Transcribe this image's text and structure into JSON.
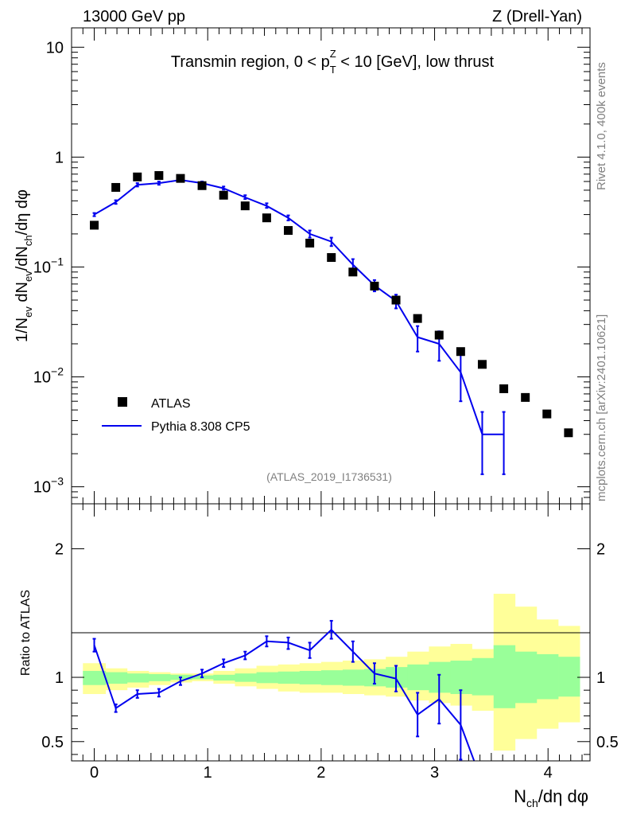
{
  "header": {
    "left": "13000 GeV pp",
    "right": "Z (Drell-Yan)"
  },
  "side_labels": {
    "rivet": "Rivet 4.1.0,  400k events",
    "site": "mcplots.cern.ch [arXiv:2401.10621]"
  },
  "colors": {
    "mc": "#0000ee",
    "band_yellow": "#ffff99",
    "band_green": "#99ff99",
    "data": "#000000"
  },
  "chart_data": [
    {
      "type": "scatter",
      "panel": "main",
      "title": "Transmin region, 0 < p_T^Z < 10 [GeV], low thrust",
      "title_parts": {
        "pre": "Transmin region, 0 < p",
        "sub": "T",
        "sup": "Z",
        "post": " < 10 [GeV], low thrust"
      },
      "ylabel": "1/N_ev dN_ev/dN_ch/dη dφ",
      "ylabel_parts": {
        "p1": "1/N",
        "s1": "ev",
        "p2": " dN",
        "s2": "ev",
        "p3": "/dN",
        "s3": "ch",
        "p4": "/dη dφ"
      },
      "yscale": "log",
      "ylim": [
        0.0007,
        15
      ],
      "xlim": [
        -0.2,
        4.37
      ],
      "yticks": [
        {
          "value": 10,
          "base": "10",
          "exp": ""
        },
        {
          "value": 1,
          "base": "1",
          "exp": ""
        },
        {
          "value": 0.1,
          "base": "10",
          "exp": "−1"
        },
        {
          "value": 0.01,
          "base": "10",
          "exp": "−2"
        },
        {
          "value": 0.001,
          "base": "10",
          "exp": "−3"
        }
      ],
      "watermark": "(ATLAS_2019_I1736531)",
      "legend": {
        "position": "bottom-left",
        "entries": [
          "ATLAS",
          "Pythia 8.308 CP5"
        ]
      },
      "series": [
        {
          "name": "ATLAS",
          "x": [
            0.0,
            0.19,
            0.38,
            0.57,
            0.76,
            0.95,
            1.14,
            1.33,
            1.52,
            1.71,
            1.9,
            2.09,
            2.28,
            2.47,
            2.66,
            2.85,
            3.04,
            3.23,
            3.42,
            3.61,
            3.8,
            3.99,
            4.18
          ],
          "y": [
            0.24,
            0.53,
            0.66,
            0.68,
            0.64,
            0.55,
            0.45,
            0.36,
            0.28,
            0.215,
            0.165,
            0.122,
            0.09,
            0.067,
            0.05,
            0.034,
            0.024,
            0.017,
            0.013,
            0.0078,
            0.0065,
            0.0046,
            0.0031
          ]
        },
        {
          "name": "Pythia 8.308 CP5",
          "x": [
            0.0,
            0.19,
            0.38,
            0.57,
            0.76,
            0.95,
            1.14,
            1.33,
            1.52,
            1.71,
            1.9,
            2.09,
            2.28,
            2.47,
            2.66,
            2.85,
            3.04,
            3.23,
            3.42,
            3.61
          ],
          "y": [
            0.3,
            0.39,
            0.56,
            0.58,
            0.62,
            0.58,
            0.52,
            0.43,
            0.36,
            0.28,
            0.2,
            0.17,
            0.105,
            0.068,
            0.049,
            0.023,
            0.02,
            0.011,
            0.003,
            0.003
          ],
          "err_lo": [
            0.29,
            0.375,
            0.54,
            0.56,
            0.6,
            0.565,
            0.505,
            0.415,
            0.345,
            0.265,
            0.185,
            0.155,
            0.092,
            0.06,
            0.042,
            0.017,
            0.014,
            0.006,
            0.0013,
            0.0013
          ],
          "err_hi": [
            0.31,
            0.405,
            0.58,
            0.6,
            0.64,
            0.6,
            0.54,
            0.45,
            0.38,
            0.295,
            0.215,
            0.185,
            0.118,
            0.076,
            0.056,
            0.029,
            0.026,
            0.016,
            0.0048,
            0.0048
          ]
        }
      ]
    },
    {
      "type": "line",
      "panel": "ratio",
      "ylabel": "Ratio to ATLAS",
      "ylim": [
        0.35,
        2.35
      ],
      "xlim": [
        -0.2,
        4.37
      ],
      "yticks": [
        0.5,
        1,
        2
      ],
      "xticks": [
        0,
        1,
        2,
        3,
        4
      ],
      "xlabel": "N_ch/dη dφ",
      "xlabel_parts": {
        "p1": "N",
        "s1": "ch",
        "p2": "/dη dφ"
      },
      "bin_edges": [
        -0.1,
        0.1,
        0.29,
        0.48,
        0.67,
        0.86,
        1.05,
        1.24,
        1.43,
        1.62,
        1.81,
        2.0,
        2.19,
        2.38,
        2.57,
        2.76,
        2.95,
        3.14,
        3.33,
        3.52,
        3.71,
        3.9,
        4.09,
        4.28
      ],
      "band_yellow": [
        [
          0.87,
          1.11
        ],
        [
          0.9,
          1.07
        ],
        [
          0.92,
          1.05
        ],
        [
          0.94,
          1.04
        ],
        [
          0.96,
          1.03
        ],
        [
          0.97,
          1.03
        ],
        [
          0.95,
          1.05
        ],
        [
          0.93,
          1.07
        ],
        [
          0.91,
          1.09
        ],
        [
          0.89,
          1.1
        ],
        [
          0.88,
          1.11
        ],
        [
          0.88,
          1.12
        ],
        [
          0.87,
          1.13
        ],
        [
          0.86,
          1.14
        ],
        [
          0.85,
          1.16
        ],
        [
          0.82,
          1.2
        ],
        [
          0.8,
          1.24
        ],
        [
          0.78,
          1.26
        ],
        [
          0.74,
          1.22
        ],
        [
          0.43,
          1.65
        ],
        [
          0.52,
          1.55
        ],
        [
          0.6,
          1.45
        ],
        [
          0.65,
          1.4
        ]
      ],
      "band_green": [
        [
          0.94,
          1.05
        ],
        [
          0.95,
          1.04
        ],
        [
          0.96,
          1.03
        ],
        [
          0.97,
          1.025
        ],
        [
          0.98,
          1.02
        ],
        [
          0.985,
          1.015
        ],
        [
          0.975,
          1.02
        ],
        [
          0.965,
          1.03
        ],
        [
          0.955,
          1.04
        ],
        [
          0.95,
          1.045
        ],
        [
          0.945,
          1.05
        ],
        [
          0.94,
          1.055
        ],
        [
          0.935,
          1.06
        ],
        [
          0.93,
          1.065
        ],
        [
          0.92,
          1.08
        ],
        [
          0.9,
          1.1
        ],
        [
          0.88,
          1.12
        ],
        [
          0.87,
          1.13
        ],
        [
          0.86,
          1.15
        ],
        [
          0.76,
          1.25
        ],
        [
          0.8,
          1.2
        ],
        [
          0.83,
          1.18
        ],
        [
          0.85,
          1.16
        ]
      ],
      "series": [
        {
          "name": "Pythia 8.308 CP5",
          "x": [
            0.0,
            0.19,
            0.38,
            0.57,
            0.76,
            0.95,
            1.14,
            1.33,
            1.52,
            1.71,
            1.9,
            2.09,
            2.28,
            2.47,
            2.66,
            2.85,
            3.04,
            3.23,
            3.42
          ],
          "y": [
            1.25,
            0.76,
            0.87,
            0.88,
            0.97,
            1.03,
            1.11,
            1.17,
            1.28,
            1.27,
            1.21,
            1.37,
            1.2,
            1.03,
            0.99,
            0.71,
            0.83,
            0.63,
            0.18
          ],
          "err_lo": [
            1.2,
            0.73,
            0.84,
            0.85,
            0.94,
            1.0,
            1.08,
            1.14,
            1.24,
            1.22,
            1.15,
            1.3,
            1.12,
            0.95,
            0.89,
            0.54,
            0.64,
            0.36,
            0.1
          ],
          "err_hi": [
            1.3,
            0.79,
            0.9,
            0.91,
            1.0,
            1.06,
            1.14,
            1.2,
            1.32,
            1.31,
            1.27,
            1.44,
            1.28,
            1.11,
            1.09,
            0.88,
            1.02,
            0.9,
            0.3
          ]
        }
      ]
    }
  ]
}
